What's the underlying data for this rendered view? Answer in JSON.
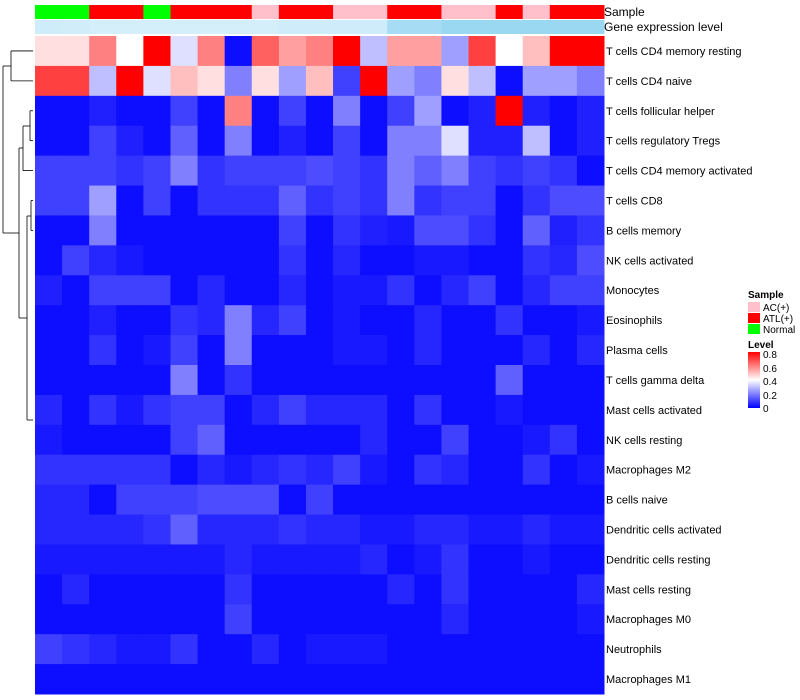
{
  "chart_data": {
    "type": "heatmap",
    "annotation_tracks": {
      "sample_label": "Sample",
      "expression_label": "Gene expression level",
      "samples": [
        "Normal",
        "Normal",
        "ATL(+)",
        "ATL(+)",
        "Normal",
        "ATL(+)",
        "ATL(+)",
        "ATL(+)",
        "AC(+)",
        "ATL(+)",
        "ATL(+)",
        "AC(+)",
        "AC(+)",
        "ATL(+)",
        "ATL(+)",
        "AC(+)",
        "AC(+)",
        "ATL(+)",
        "AC(+)",
        "ATL(+)",
        "ATL(+)"
      ],
      "expression_levels": [
        0.15,
        0.12,
        0.1,
        0.1,
        0.1,
        0.1,
        0.1,
        0.1,
        0.1,
        0.15,
        0.15,
        0.15,
        0.15,
        0.5,
        0.5,
        0.6,
        0.6,
        0.6,
        0.6,
        0.6,
        0.6
      ]
    },
    "rows": [
      "T cells CD4 memory resting",
      "T cells CD4 naive",
      "T cells follicular helper",
      "T cells regulatory  Tregs",
      "T cells CD4 memory activated",
      "T cells CD8",
      "B cells memory",
      "NK cells activated",
      "Monocytes",
      "Eosinophils",
      "Plasma cells",
      "T cells gamma delta",
      "Mast cells activated",
      "NK cells resting",
      "Macrophages M2",
      "B cells naive",
      "Dendritic cells activated",
      "Dendritic cells resting",
      "Mast cells resting",
      "Macrophages M0",
      "Neutrophils",
      "Macrophages M1"
    ],
    "values": [
      [
        0.45,
        0.45,
        0.6,
        0.4,
        0.8,
        0.35,
        0.6,
        0.02,
        0.65,
        0.55,
        0.6,
        0.8,
        0.3,
        0.55,
        0.55,
        0.25,
        0.7,
        0.4,
        0.5,
        0.8,
        0.8
      ],
      [
        0.7,
        0.7,
        0.3,
        0.8,
        0.35,
        0.5,
        0.45,
        0.2,
        0.45,
        0.25,
        0.5,
        0.1,
        0.8,
        0.25,
        0.2,
        0.45,
        0.3,
        0.02,
        0.25,
        0.25,
        0.2
      ],
      [
        0.02,
        0.02,
        0.05,
        0.02,
        0.02,
        0.1,
        0.02,
        0.6,
        0.02,
        0.1,
        0.02,
        0.2,
        0.02,
        0.1,
        0.25,
        0.02,
        0.05,
        0.8,
        0.05,
        0.02,
        0.05
      ],
      [
        0.02,
        0.02,
        0.1,
        0.05,
        0.02,
        0.15,
        0.02,
        0.2,
        0.02,
        0.05,
        0.02,
        0.1,
        0.02,
        0.2,
        0.2,
        0.35,
        0.05,
        0.05,
        0.3,
        0.02,
        0.05
      ],
      [
        0.1,
        0.1,
        0.1,
        0.08,
        0.1,
        0.2,
        0.08,
        0.1,
        0.1,
        0.1,
        0.12,
        0.1,
        0.08,
        0.2,
        0.15,
        0.2,
        0.1,
        0.08,
        0.1,
        0.08,
        0.02
      ],
      [
        0.1,
        0.1,
        0.25,
        0.02,
        0.1,
        0.02,
        0.08,
        0.08,
        0.08,
        0.15,
        0.08,
        0.1,
        0.08,
        0.2,
        0.08,
        0.1,
        0.1,
        0.02,
        0.08,
        0.12,
        0.12
      ],
      [
        0.02,
        0.02,
        0.2,
        0.02,
        0.02,
        0.02,
        0.02,
        0.02,
        0.02,
        0.1,
        0.02,
        0.08,
        0.05,
        0.04,
        0.12,
        0.12,
        0.08,
        0.02,
        0.15,
        0.05,
        0.08
      ],
      [
        0.02,
        0.1,
        0.06,
        0.04,
        0.02,
        0.02,
        0.02,
        0.02,
        0.02,
        0.08,
        0.02,
        0.06,
        0.02,
        0.02,
        0.04,
        0.04,
        0.02,
        0.02,
        0.08,
        0.06,
        0.12
      ],
      [
        0.05,
        0.02,
        0.1,
        0.1,
        0.1,
        0.02,
        0.06,
        0.02,
        0.02,
        0.06,
        0.02,
        0.04,
        0.04,
        0.08,
        0.02,
        0.06,
        0.1,
        0.02,
        0.06,
        0.1,
        0.1
      ],
      [
        0.02,
        0.02,
        0.05,
        0.02,
        0.02,
        0.08,
        0.06,
        0.2,
        0.06,
        0.1,
        0.02,
        0.04,
        0.02,
        0.02,
        0.06,
        0.02,
        0.02,
        0.08,
        0.02,
        0.02,
        0.04
      ],
      [
        0.02,
        0.02,
        0.08,
        0.02,
        0.04,
        0.1,
        0.02,
        0.2,
        0.02,
        0.02,
        0.02,
        0.04,
        0.04,
        0.02,
        0.06,
        0.02,
        0.02,
        0.02,
        0.06,
        0.02,
        0.06
      ],
      [
        0.02,
        0.02,
        0.02,
        0.02,
        0.02,
        0.2,
        0.02,
        0.08,
        0.02,
        0.02,
        0.02,
        0.02,
        0.02,
        0.02,
        0.02,
        0.02,
        0.02,
        0.15,
        0.02,
        0.02,
        0.02
      ],
      [
        0.06,
        0.02,
        0.08,
        0.04,
        0.08,
        0.1,
        0.1,
        0.02,
        0.06,
        0.1,
        0.06,
        0.06,
        0.06,
        0.02,
        0.08,
        0.02,
        0.02,
        0.04,
        0.02,
        0.02,
        0.02
      ],
      [
        0.04,
        0.02,
        0.02,
        0.02,
        0.02,
        0.1,
        0.15,
        0.02,
        0.02,
        0.02,
        0.02,
        0.02,
        0.06,
        0.02,
        0.02,
        0.1,
        0.02,
        0.02,
        0.04,
        0.08,
        0.02
      ],
      [
        0.08,
        0.08,
        0.08,
        0.08,
        0.08,
        0.02,
        0.06,
        0.04,
        0.06,
        0.08,
        0.06,
        0.1,
        0.04,
        0.02,
        0.08,
        0.06,
        0.02,
        0.02,
        0.08,
        0.02,
        0.04
      ],
      [
        0.06,
        0.06,
        0.02,
        0.1,
        0.1,
        0.1,
        0.12,
        0.12,
        0.12,
        0.02,
        0.1,
        0.02,
        0.02,
        0.02,
        0.02,
        0.02,
        0.02,
        0.02,
        0.02,
        0.02,
        0.02
      ],
      [
        0.06,
        0.06,
        0.06,
        0.06,
        0.08,
        0.15,
        0.06,
        0.06,
        0.06,
        0.08,
        0.06,
        0.06,
        0.04,
        0.04,
        0.06,
        0.06,
        0.04,
        0.04,
        0.06,
        0.04,
        0.04
      ],
      [
        0.04,
        0.04,
        0.04,
        0.04,
        0.04,
        0.04,
        0.04,
        0.06,
        0.04,
        0.04,
        0.04,
        0.04,
        0.06,
        0.02,
        0.04,
        0.08,
        0.02,
        0.02,
        0.04,
        0.02,
        0.02
      ],
      [
        0.02,
        0.06,
        0.02,
        0.02,
        0.02,
        0.02,
        0.02,
        0.08,
        0.02,
        0.02,
        0.02,
        0.02,
        0.02,
        0.06,
        0.02,
        0.08,
        0.02,
        0.02,
        0.02,
        0.02,
        0.06
      ],
      [
        0.02,
        0.02,
        0.02,
        0.02,
        0.02,
        0.02,
        0.02,
        0.1,
        0.02,
        0.02,
        0.02,
        0.02,
        0.02,
        0.02,
        0.02,
        0.06,
        0.02,
        0.02,
        0.02,
        0.02,
        0.04
      ],
      [
        0.1,
        0.08,
        0.06,
        0.04,
        0.04,
        0.08,
        0.02,
        0.02,
        0.06,
        0.02,
        0.04,
        0.04,
        0.04,
        0.02,
        0.02,
        0.02,
        0.02,
        0.02,
        0.02,
        0.02,
        0.02
      ],
      [
        0.02,
        0.02,
        0.02,
        0.02,
        0.02,
        0.02,
        0.02,
        0.02,
        0.02,
        0.02,
        0.02,
        0.02,
        0.02,
        0.02,
        0.02,
        0.02,
        0.02,
        0.02,
        0.02,
        0.02,
        0.02
      ]
    ],
    "dendrogram": "row clustering (left side)",
    "legend_sample": {
      "title": "Sample",
      "entries": [
        {
          "label": "AC(+)",
          "color": "#ffc0cb"
        },
        {
          "label": "ATL(+)",
          "color": "#ff0000"
        },
        {
          "label": "Normal",
          "color": "#00ff00"
        }
      ]
    },
    "legend_level": {
      "title": "Level",
      "ticks": [
        "0.8",
        "0.6",
        "0.4",
        "0.2",
        "0"
      ],
      "min": 0,
      "max": 0.8
    },
    "colors": {
      "low": "#0000ff",
      "mid": "#ffffff",
      "high": "#ff0000",
      "expr_low": "#dff2fb",
      "expr_high": "#6cc7ec"
    }
  }
}
